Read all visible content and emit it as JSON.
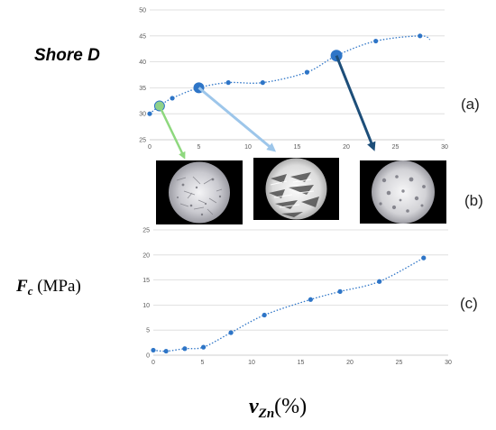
{
  "labels": {
    "top_y_label": "Shore D",
    "bottom_y_symbol": "F",
    "bottom_y_subscript": "c",
    "bottom_y_unit": " (MPa)",
    "x_symbol": "v",
    "x_subscript": "Zn",
    "x_unit": "(%)",
    "panel_a": "(a)",
    "panel_b": "(b)",
    "panel_c": "(c)"
  },
  "colors": {
    "series": "#2e75c7",
    "green_marker": "#8fd08a",
    "arrow_green": "#8ed87e",
    "arrow_light_blue": "#9dc6ea",
    "arrow_dark_blue": "#1d4e79",
    "grid": "#d9d9d9"
  },
  "chart_data": [
    {
      "type": "scatter",
      "trendline": "dotted polynomial",
      "x": [
        0,
        2.3,
        8,
        11.5,
        16,
        23,
        27.5
      ],
      "y": [
        30,
        33,
        36,
        36,
        38,
        44,
        45
      ],
      "highlighted_points": [
        {
          "x": 1,
          "y": 31.5,
          "color": "#8fd08a"
        },
        {
          "x": 5,
          "y": 35,
          "color": "#2e75c7"
        },
        {
          "x": 19,
          "y": 41.2,
          "color": "#2e75c7"
        }
      ],
      "xlim": [
        0,
        30
      ],
      "ylim": [
        25,
        50
      ],
      "xticks": [
        0,
        5,
        10,
        15,
        20,
        25,
        30
      ],
      "yticks": [
        25,
        30,
        35,
        40,
        45,
        50
      ],
      "grid": "horizontal"
    },
    {
      "type": "scatter",
      "trendline": "dotted polynomial",
      "x": [
        0,
        1.3,
        3.2,
        5.1,
        7.9,
        11.3,
        16,
        19,
        23,
        27.5
      ],
      "y": [
        1,
        0.8,
        1.3,
        1.6,
        4.5,
        8,
        11.1,
        12.7,
        14.7,
        19.4
      ],
      "xlim": [
        0,
        30
      ],
      "ylim": [
        0,
        25
      ],
      "xticks": [
        0,
        5,
        10,
        15,
        20,
        25,
        30
      ],
      "yticks": [
        0,
        5,
        10,
        15,
        20,
        25
      ],
      "grid": "horizontal"
    }
  ]
}
